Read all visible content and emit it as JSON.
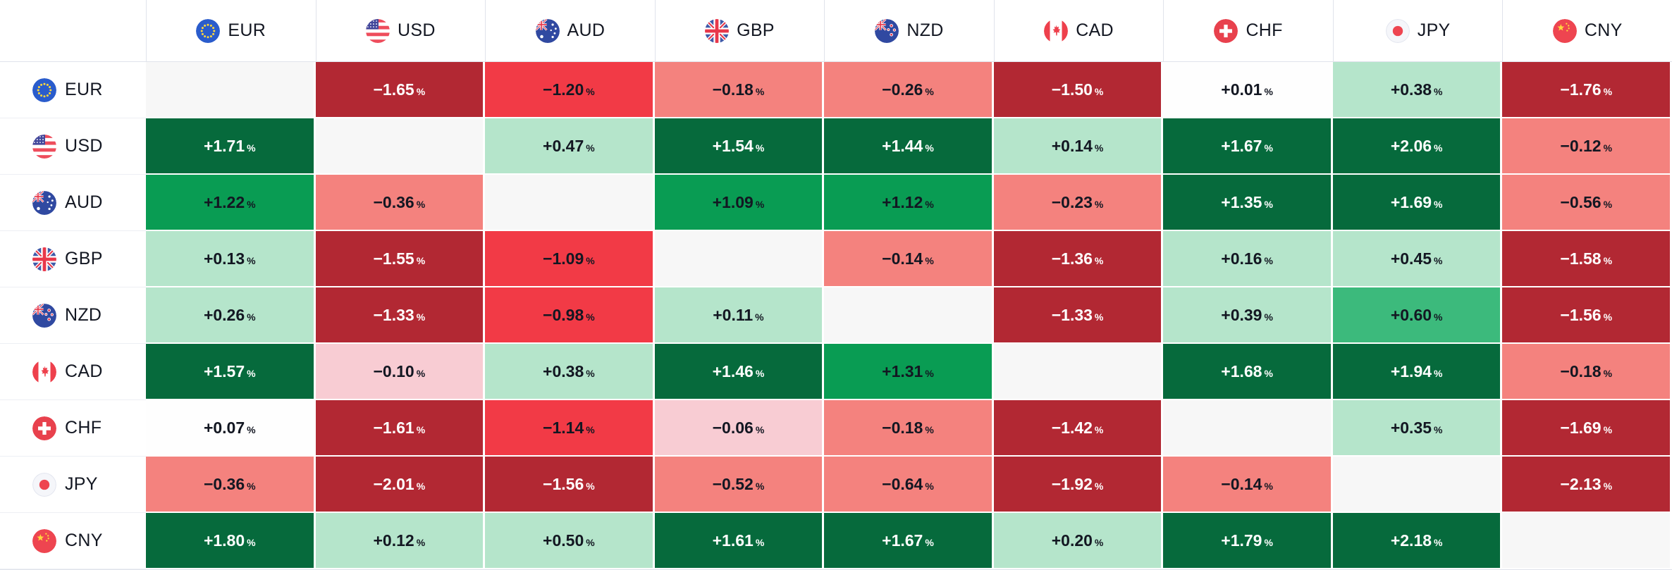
{
  "chart_data": {
    "type": "heatmap",
    "unit": "%",
    "columns": [
      "EUR",
      "USD",
      "AUD",
      "GBP",
      "NZD",
      "CAD",
      "CHF",
      "JPY",
      "CNY"
    ],
    "rows": [
      "EUR",
      "USD",
      "AUD",
      "GBP",
      "NZD",
      "CAD",
      "CHF",
      "JPY",
      "CNY"
    ],
    "display": [
      [
        "",
        "−1.65",
        "−1.20",
        "−0.18",
        "−0.26",
        "−1.50",
        "+0.01",
        "+0.38",
        "−1.76"
      ],
      [
        "+1.71",
        "",
        "+0.47",
        "+1.54",
        "+1.44",
        "+0.14",
        "+1.67",
        "+2.06",
        "−0.12"
      ],
      [
        "+1.22",
        "−0.36",
        "",
        "+1.09",
        "+1.12",
        "−0.23",
        "+1.35",
        "+1.69",
        "−0.56"
      ],
      [
        "+0.13",
        "−1.55",
        "−1.09",
        "",
        "−0.14",
        "−1.36",
        "+0.16",
        "+0.45",
        "−1.58"
      ],
      [
        "+0.26",
        "−1.33",
        "−0.98",
        "+0.11",
        "",
        "−1.33",
        "+0.39",
        "+0.60",
        "−1.56"
      ],
      [
        "+1.57",
        "−0.10",
        "+0.38",
        "+1.46",
        "+1.31",
        "",
        "+1.68",
        "+1.94",
        "−0.18"
      ],
      [
        "+0.07",
        "−1.61",
        "−1.14",
        "−0.06",
        "−0.18",
        "−1.42",
        "",
        "+0.35",
        "−1.69"
      ],
      [
        "−0.36",
        "−2.01",
        "−1.56",
        "−0.52",
        "−0.64",
        "−1.92",
        "−0.14",
        "",
        "−2.13"
      ],
      [
        "+1.80",
        "+0.12",
        "+0.50",
        "+1.61",
        "+1.67",
        "+0.20",
        "+1.79",
        "+2.18",
        ""
      ]
    ],
    "values_pct": [
      [
        null,
        -1.65,
        -1.2,
        -0.18,
        -0.26,
        -1.5,
        0.01,
        0.38,
        -1.76
      ],
      [
        1.71,
        null,
        0.47,
        1.54,
        1.44,
        0.14,
        1.67,
        2.06,
        -0.12
      ],
      [
        1.22,
        -0.36,
        null,
        1.09,
        1.12,
        -0.23,
        1.35,
        1.69,
        -0.56
      ],
      [
        0.13,
        -1.55,
        -1.09,
        null,
        -0.14,
        -1.36,
        0.16,
        0.45,
        -1.58
      ],
      [
        0.26,
        -1.33,
        -0.98,
        0.11,
        null,
        -1.33,
        0.39,
        0.6,
        -1.56
      ],
      [
        1.57,
        -0.1,
        0.38,
        1.46,
        1.31,
        null,
        1.68,
        1.94,
        -0.18
      ],
      [
        0.07,
        -1.61,
        -1.14,
        -0.06,
        -0.18,
        -1.42,
        null,
        0.35,
        -1.69
      ],
      [
        -0.36,
        -2.01,
        -1.56,
        -0.52,
        -0.64,
        -1.92,
        -0.14,
        null,
        -2.13
      ],
      [
        1.8,
        0.12,
        0.5,
        1.61,
        1.67,
        0.2,
        1.79,
        2.18,
        null
      ]
    ],
    "legend_position": "none",
    "grid": "white-gaps"
  },
  "theme": {
    "background": "#FFFFFF",
    "text_dark": "#131722",
    "text_light": "#FFFFFF",
    "diagonal_bg": "#F7F7F7",
    "header_line": "#E0E3EB",
    "label_separator": "#EDEFF4",
    "color_scale": [
      {
        "min": 1.33,
        "bg": "#066A3C",
        "text": "#FFFFFF"
      },
      {
        "min": 0.85,
        "bg": "#099C53",
        "text": "#131722"
      },
      {
        "min": 0.55,
        "bg": "#3CBA7C",
        "text": "#131722"
      },
      {
        "min": 0.1,
        "bg": "#B5E5CB",
        "text": "#131722"
      },
      {
        "min": -0.05,
        "bg": "#FEFEFE",
        "text": "#131722"
      },
      {
        "min": -0.11,
        "bg": "#F8CCD3",
        "text": "#131722"
      },
      {
        "min": -0.75,
        "bg": "#F4827E",
        "text": "#131722"
      },
      {
        "min": -1.28,
        "bg": "#F23A46",
        "text": "#131722"
      },
      {
        "min": -99,
        "bg": "#B22833",
        "text": "#FFFFFF"
      }
    ]
  }
}
